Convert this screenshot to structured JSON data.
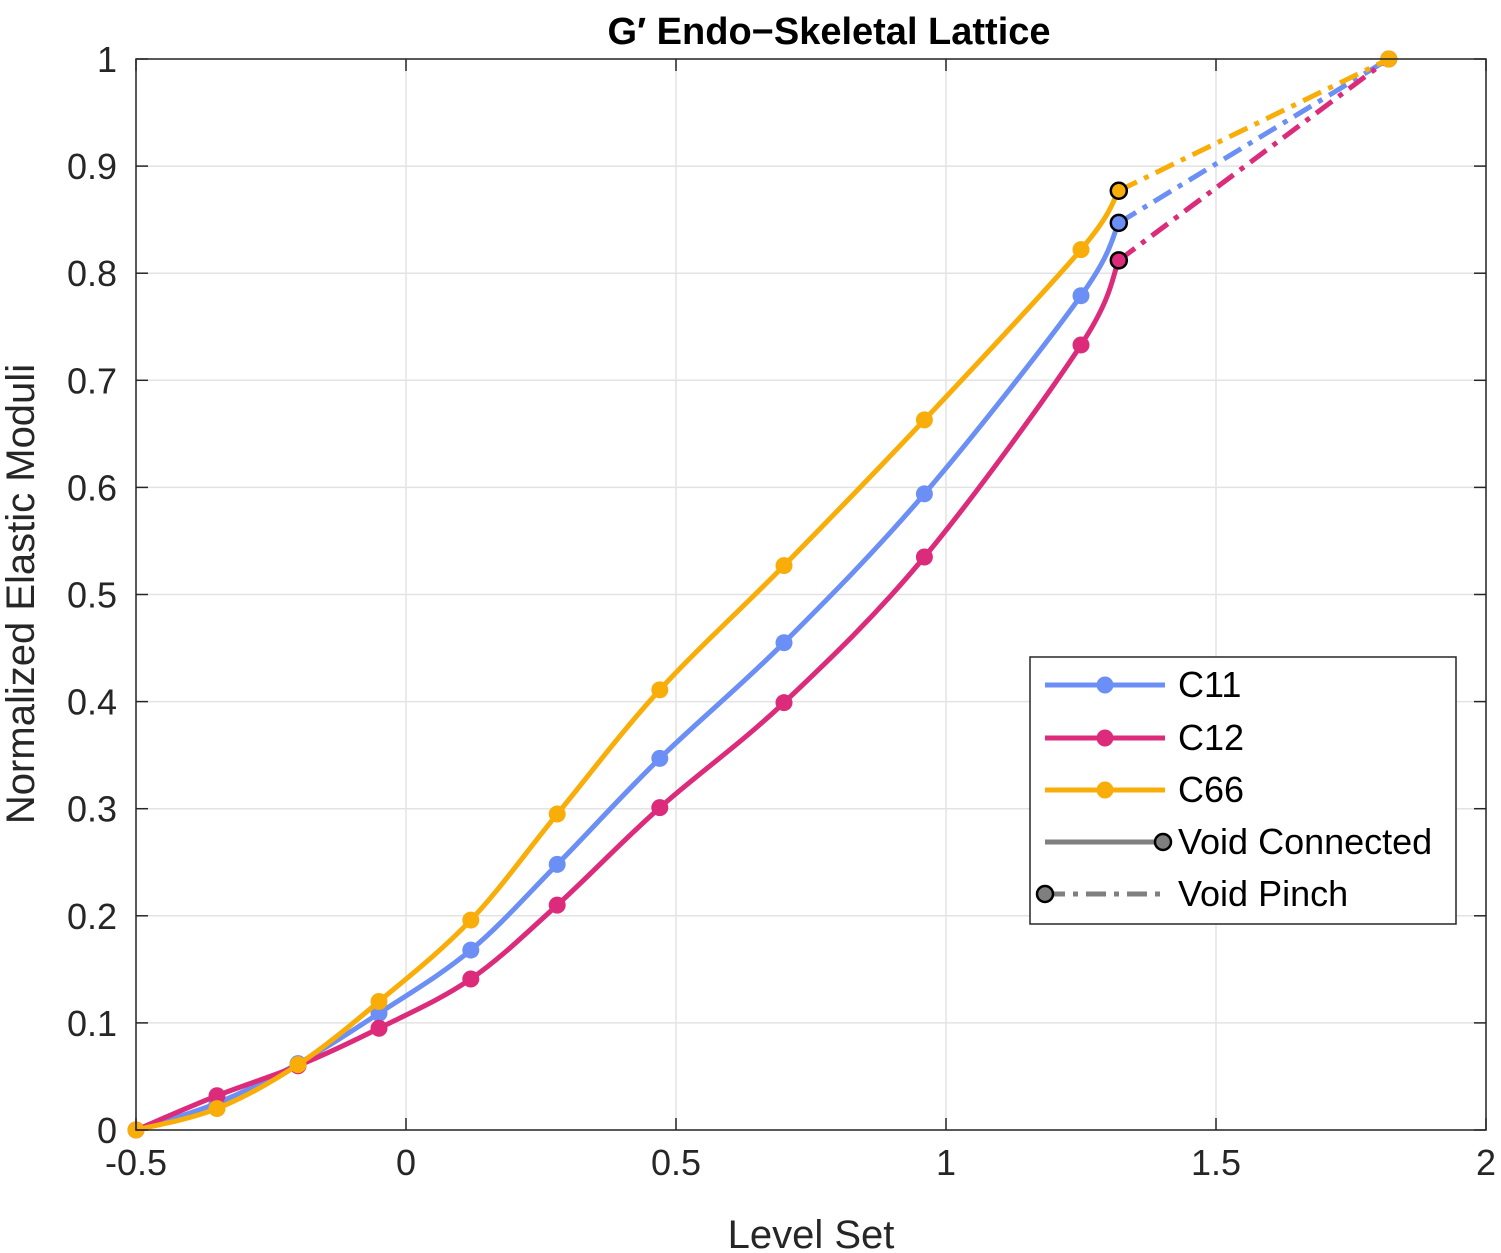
{
  "chart_data": {
    "type": "line",
    "title": "G′ Endo−Skeletal Lattice",
    "xlabel": "Level Set",
    "ylabel": "Normalized Elastic Moduli",
    "xlim": [
      -0.5,
      2
    ],
    "ylim": [
      0,
      1
    ],
    "xticks": [
      -0.5,
      0,
      0.5,
      1,
      1.5,
      2
    ],
    "xtick_labels": [
      "-0.5",
      "0",
      "0.5",
      "1",
      "1.5",
      "2"
    ],
    "yticks": [
      0,
      0.1,
      0.2,
      0.3,
      0.4,
      0.5,
      0.6,
      0.7,
      0.8,
      0.9,
      1
    ],
    "ytick_labels": [
      "0",
      "0.1",
      "0.2",
      "0.3",
      "0.4",
      "0.5",
      "0.6",
      "0.7",
      "0.8",
      "0.9",
      "1"
    ],
    "grid": true,
    "legend_position": "lower-right",
    "x": [
      -0.5,
      -0.35,
      -0.2,
      -0.05,
      0.12,
      0.28,
      0.47,
      0.7,
      0.96,
      1.25,
      1.32
    ],
    "x_pinch": [
      1.32,
      1.82
    ],
    "series": [
      {
        "name": "C11",
        "color": "#6b8ff5",
        "values": [
          0.0,
          0.025,
          0.062,
          0.109,
          0.168,
          0.248,
          0.347,
          0.455,
          0.594,
          0.779,
          0.847
        ],
        "pinch_values": [
          0.847,
          1.0
        ]
      },
      {
        "name": "C12",
        "color": "#dc2b7a",
        "values": [
          0.0,
          0.032,
          0.06,
          0.095,
          0.141,
          0.21,
          0.301,
          0.399,
          0.535,
          0.733,
          0.812
        ],
        "pinch_values": [
          0.812,
          1.0
        ]
      },
      {
        "name": "C66",
        "color": "#f9ad08",
        "values": [
          0.0,
          0.02,
          0.061,
          0.12,
          0.196,
          0.295,
          0.411,
          0.527,
          0.663,
          0.822,
          0.877
        ],
        "pinch_values": [
          0.877,
          1.0
        ]
      }
    ],
    "line_styles": [
      {
        "name": "Void Connected",
        "color": "#7f7f7f",
        "dash": "solid"
      },
      {
        "name": "Void Pinch",
        "color": "#7f7f7f",
        "dash": "dashdot"
      }
    ]
  }
}
